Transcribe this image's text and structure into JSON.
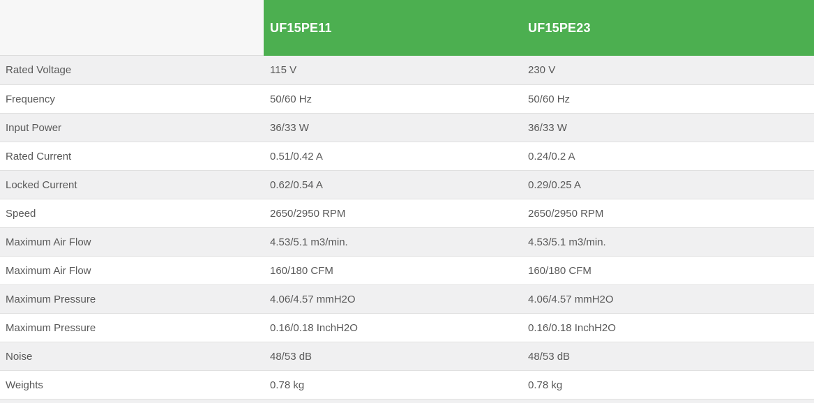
{
  "table": {
    "corner_label": "",
    "columns": [
      "UF15PE11",
      "UF15PE23"
    ],
    "accent_color": "#4caf50",
    "row_alt_color": "#f0f0f1",
    "rows": [
      {
        "label": "Rated Voltage",
        "uf15pe11": "115 V",
        "uf15pe23": "230 V"
      },
      {
        "label": "Frequency",
        "uf15pe11": "50/60 Hz",
        "uf15pe23": "50/60 Hz"
      },
      {
        "label": "Input Power",
        "uf15pe11": "36/33 W",
        "uf15pe23": "36/33 W"
      },
      {
        "label": "Rated Current",
        "uf15pe11": "0.51/0.42 A",
        "uf15pe23": "0.24/0.2 A"
      },
      {
        "label": "Locked Current",
        "uf15pe11": "0.62/0.54 A",
        "uf15pe23": "0.29/0.25 A"
      },
      {
        "label": "Speed",
        "uf15pe11": "2650/2950 RPM",
        "uf15pe23": "2650/2950 RPM"
      },
      {
        "label": "Maximum Air Flow",
        "uf15pe11": "4.53/5.1 m3/min.",
        "uf15pe23": "4.53/5.1 m3/min."
      },
      {
        "label": "Maximum Air Flow",
        "uf15pe11": "160/180 CFM",
        "uf15pe23": "160/180 CFM"
      },
      {
        "label": "Maximum Pressure",
        "uf15pe11": "4.06/4.57 mmH2O",
        "uf15pe23": "4.06/4.57 mmH2O"
      },
      {
        "label": "Maximum Pressure",
        "uf15pe11": "0.16/0.18 InchH2O",
        "uf15pe23": "0.16/0.18 InchH2O"
      },
      {
        "label": "Noise",
        "uf15pe11": "48/53 dB",
        "uf15pe23": "48/53 dB"
      },
      {
        "label": "Weights",
        "uf15pe11": "0.78 kg",
        "uf15pe23": "0.78 kg"
      }
    ]
  }
}
